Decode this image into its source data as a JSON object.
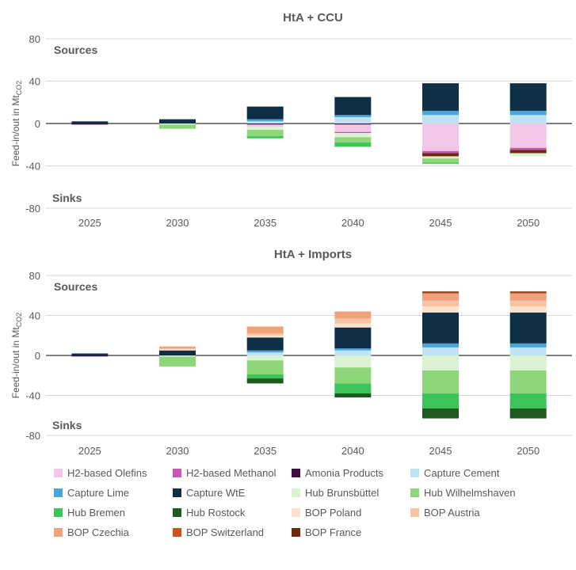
{
  "chart_data": [
    {
      "type": "bar",
      "stacked": true,
      "title": "HtA + CCU",
      "ylabel_main": "Feed-in/out in Mt",
      "ylabel_sub": "CO2",
      "ylim": [
        -80,
        80
      ],
      "yticks": [
        -80,
        -40,
        0,
        40,
        80
      ],
      "annotations": {
        "sources": "Sources",
        "sinks": "Sinks"
      },
      "categories": [
        "2025",
        "2030",
        "2035",
        "2040",
        "2045",
        "2050"
      ],
      "sources": [
        {
          "name": "Capture Cement",
          "values": [
            0,
            0,
            2,
            6,
            8,
            8
          ]
        },
        {
          "name": "Capture Lime",
          "values": [
            0,
            0,
            2,
            2,
            4,
            4
          ]
        },
        {
          "name": "Capture WtE",
          "values": [
            2,
            4,
            12,
            17,
            26,
            26
          ]
        }
      ],
      "sinks": [
        {
          "name": "Amonia Products",
          "values": [
            -1,
            0,
            -1,
            -1,
            0,
            0
          ]
        },
        {
          "name": "H2-based Olefins",
          "values": [
            0,
            0,
            -2,
            -7,
            -26,
            -23
          ]
        },
        {
          "name": "H2-based Methanol",
          "values": [
            0,
            0,
            0,
            -1,
            -2,
            -2
          ]
        },
        {
          "name": "BOP France",
          "values": [
            0,
            0,
            0,
            0,
            -3,
            -3
          ]
        },
        {
          "name": "Hub Brunsbüttel",
          "values": [
            0,
            -1,
            -3,
            -4,
            -2,
            -3
          ]
        },
        {
          "name": "Hub Wilhelmshaven",
          "values": [
            0,
            -4,
            -6,
            -5,
            -4,
            0
          ]
        },
        {
          "name": "Hub Bremen",
          "values": [
            0,
            0,
            -2,
            -4,
            -1,
            0
          ]
        }
      ]
    },
    {
      "type": "bar",
      "stacked": true,
      "title": "HtA + Imports",
      "ylabel_main": "Feed-in/out in Mt",
      "ylabel_sub": "CO2",
      "ylim": [
        -80,
        80
      ],
      "yticks": [
        -80,
        -40,
        0,
        40,
        80
      ],
      "annotations": {
        "sources": "Sources",
        "sinks": "Sinks"
      },
      "categories": [
        "2025",
        "2030",
        "2035",
        "2040",
        "2045",
        "2050"
      ],
      "sources": [
        {
          "name": "Capture Cement",
          "values": [
            0,
            0,
            3,
            5,
            8,
            8
          ]
        },
        {
          "name": "Capture Lime",
          "values": [
            0,
            0,
            2,
            2,
            4,
            4
          ]
        },
        {
          "name": "Capture WtE",
          "values": [
            2,
            5,
            13,
            21,
            31,
            31
          ]
        },
        {
          "name": "BOP Poland",
          "values": [
            0,
            1,
            2,
            4,
            6,
            6
          ]
        },
        {
          "name": "BOP Austria",
          "values": [
            0,
            1,
            2,
            5,
            6,
            6
          ]
        },
        {
          "name": "BOP Czechia",
          "values": [
            0,
            2,
            7,
            7,
            7,
            7
          ]
        },
        {
          "name": "BOP Switzerland",
          "values": [
            0,
            0,
            0,
            0,
            1,
            1
          ]
        },
        {
          "name": "BOP France",
          "values": [
            0,
            0,
            0,
            0,
            1,
            1
          ]
        }
      ],
      "sinks": [
        {
          "name": "Amonia Products",
          "values": [
            -1,
            0,
            0,
            0,
            0,
            0
          ]
        },
        {
          "name": "Hub Brunsbüttel",
          "values": [
            0,
            -1,
            -5,
            -12,
            -15,
            -15
          ]
        },
        {
          "name": "Hub Wilhelmshaven",
          "values": [
            0,
            -10,
            -14,
            -16,
            -23,
            -23
          ]
        },
        {
          "name": "Hub Bremen",
          "values": [
            0,
            0,
            -4,
            -10,
            -15,
            -15
          ]
        },
        {
          "name": "Hub Rostock",
          "values": [
            0,
            0,
            -5,
            -4,
            -10,
            -10
          ]
        }
      ]
    }
  ],
  "colors": {
    "H2-based Olefins": "#f3c6e8",
    "H2-based Methanol": "#c55ab5",
    "Amonia Products": "#3d1040",
    "Capture Cement": "#bfe3f5",
    "Capture Lime": "#4aa6d8",
    "Capture WtE": "#0e2f45",
    "Hub Brunsbüttel": "#dcf2d4",
    "Hub Wilhelmshaven": "#8fd67a",
    "Hub Bremen": "#3cc45a",
    "Hub Rostock": "#1f5a1f",
    "BOP Poland": "#f9e3cf",
    "BOP Austria": "#f6c4a3",
    "BOP Czechia": "#f0a27b",
    "BOP Switzerland": "#c9571d",
    "BOP France": "#6e2a0c"
  },
  "legend": [
    {
      "name": "H2-based Olefins",
      "color": "#f3c6e8"
    },
    {
      "name": "H2-based Methanol",
      "color": "#c55ab5"
    },
    {
      "name": "Amonia Products",
      "color": "#3d1040"
    },
    {
      "name": "Capture Cement",
      "color": "#bfe3f5"
    },
    {
      "name": "Capture Lime",
      "color": "#4aa6d8"
    },
    {
      "name": "Capture WtE",
      "color": "#0e2f45"
    },
    {
      "name": "Hub Brunsbüttel",
      "color": "#dcf2d4"
    },
    {
      "name": "Hub Wilhelmshaven",
      "color": "#8fd67a"
    },
    {
      "name": "Hub Bremen",
      "color": "#3cc45a"
    },
    {
      "name": "Hub Rostock",
      "color": "#1f5a1f"
    },
    {
      "name": "BOP Poland",
      "color": "#f9e3cf"
    },
    {
      "name": "BOP Austria",
      "color": "#f6c4a3"
    },
    {
      "name": "BOP Czechia",
      "color": "#f0a27b"
    },
    {
      "name": "BOP Switzerland",
      "color": "#c9571d"
    },
    {
      "name": "BOP France",
      "color": "#6e2a0c"
    }
  ]
}
